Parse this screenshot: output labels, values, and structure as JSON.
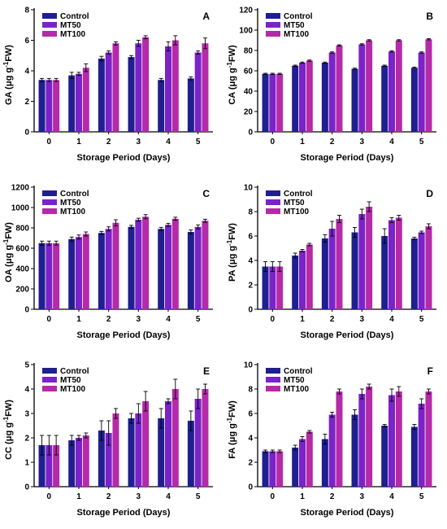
{
  "colors": {
    "Control": "#1f1f8f",
    "MT50": "#7b22c9",
    "MT100": "#b42aa8"
  },
  "chart_data": [
    {
      "type": "bar",
      "panel": "A",
      "ylabel_main": "GA",
      "ylabel_unit_pre": "(μg g",
      "ylabel_sup": "-1",
      "ylabel_unit_post": "FW)",
      "xlabel": "Storage Period (Days)",
      "categories": [
        "0",
        "1",
        "2",
        "3",
        "4",
        "5"
      ],
      "ylim": [
        0,
        8
      ],
      "yticks": [
        0,
        2,
        4,
        6,
        8
      ],
      "legend": "top-left",
      "series": [
        {
          "name": "Control",
          "values": [
            3.4,
            3.7,
            4.8,
            4.9,
            3.4,
            3.5
          ],
          "errors": [
            0.1,
            0.2,
            0.15,
            0.1,
            0.1,
            0.1
          ]
        },
        {
          "name": "MT50",
          "values": [
            3.4,
            3.8,
            5.2,
            5.8,
            5.6,
            5.2
          ],
          "errors": [
            0.1,
            0.1,
            0.1,
            0.2,
            0.3,
            0.1
          ]
        },
        {
          "name": "MT100",
          "values": [
            3.4,
            4.2,
            5.8,
            6.2,
            6.0,
            5.8
          ],
          "errors": [
            0.1,
            0.25,
            0.1,
            0.1,
            0.3,
            0.35
          ]
        }
      ]
    },
    {
      "type": "bar",
      "panel": "B",
      "ylabel_main": "CA",
      "ylabel_unit_pre": "(μg g",
      "ylabel_sup": "-1",
      "ylabel_unit_post": "FW)",
      "xlabel": "Storage Period (Days)",
      "categories": [
        "0",
        "1",
        "2",
        "3",
        "4",
        "5"
      ],
      "ylim": [
        0,
        120
      ],
      "yticks": [
        0,
        20,
        40,
        60,
        80,
        100,
        120
      ],
      "legend": "top-left",
      "series": [
        {
          "name": "Control",
          "values": [
            57,
            65,
            68,
            62,
            65,
            63
          ],
          "errors": [
            0.6,
            0.6,
            0.6,
            0.6,
            0.6,
            0.6
          ]
        },
        {
          "name": "MT50",
          "values": [
            57,
            68,
            78,
            86,
            79,
            78
          ],
          "errors": [
            0.6,
            0.6,
            0.6,
            0.6,
            0.6,
            0.6
          ]
        },
        {
          "name": "MT100",
          "values": [
            57,
            70,
            85,
            90,
            90,
            91
          ],
          "errors": [
            0.6,
            0.6,
            0.6,
            0.6,
            0.6,
            0.6
          ]
        }
      ]
    },
    {
      "type": "bar",
      "panel": "C",
      "ylabel_main": "OA",
      "ylabel_unit_pre": "(μg g",
      "ylabel_sup": "-1",
      "ylabel_unit_post": "FW)",
      "xlabel": "Storage Period (Days)",
      "categories": [
        "0",
        "1",
        "2",
        "3",
        "4",
        "5"
      ],
      "ylim": [
        0,
        1200
      ],
      "yticks": [
        0,
        200,
        400,
        600,
        800,
        1000,
        1200
      ],
      "legend": "top-left",
      "series": [
        {
          "name": "Control",
          "values": [
            650,
            690,
            750,
            810,
            790,
            760
          ],
          "errors": [
            20,
            20,
            15,
            15,
            15,
            20
          ]
        },
        {
          "name": "MT50",
          "values": [
            650,
            710,
            790,
            880,
            830,
            810
          ],
          "errors": [
            20,
            20,
            20,
            15,
            15,
            20
          ]
        },
        {
          "name": "MT100",
          "values": [
            650,
            740,
            850,
            910,
            890,
            870
          ],
          "errors": [
            20,
            20,
            30,
            20,
            15,
            15
          ]
        }
      ]
    },
    {
      "type": "bar",
      "panel": "D",
      "ylabel_main": "PA",
      "ylabel_unit_pre": "(μg g",
      "ylabel_sup": "-1",
      "ylabel_unit_post": "FW)",
      "xlabel": "Storage Period (Days)",
      "categories": [
        "0",
        "1",
        "2",
        "3",
        "4",
        "5"
      ],
      "ylim": [
        0,
        10
      ],
      "yticks": [
        0,
        2,
        4,
        6,
        8,
        10
      ],
      "legend": "top-left",
      "series": [
        {
          "name": "Control",
          "values": [
            3.5,
            4.4,
            5.8,
            6.3,
            6.0,
            5.8
          ],
          "errors": [
            0.4,
            0.2,
            0.3,
            0.4,
            0.6,
            0.1
          ]
        },
        {
          "name": "MT50",
          "values": [
            3.5,
            4.8,
            6.6,
            7.8,
            7.3,
            6.3
          ],
          "errors": [
            0.4,
            0.1,
            0.6,
            0.4,
            0.2,
            0.1
          ]
        },
        {
          "name": "MT100",
          "values": [
            3.5,
            5.3,
            7.4,
            8.4,
            7.5,
            6.8
          ],
          "errors": [
            0.4,
            0.1,
            0.3,
            0.4,
            0.2,
            0.2
          ]
        }
      ]
    },
    {
      "type": "bar",
      "panel": "E",
      "ylabel_main": "CC",
      "ylabel_unit_pre": "(μg g",
      "ylabel_sup": "-1",
      "ylabel_unit_post": "FW)",
      "xlabel": "Storage Period (Days)",
      "categories": [
        "0",
        "1",
        "2",
        "3",
        "4",
        "5"
      ],
      "ylim": [
        0,
        5
      ],
      "yticks": [
        0,
        1,
        2,
        3,
        4,
        5
      ],
      "legend": "top-left",
      "series": [
        {
          "name": "Control",
          "values": [
            1.7,
            1.9,
            2.3,
            2.8,
            2.8,
            2.7
          ],
          "errors": [
            0.4,
            0.2,
            0.4,
            0.2,
            0.4,
            0.4
          ]
        },
        {
          "name": "MT50",
          "values": [
            1.7,
            2.0,
            2.2,
            3.0,
            3.5,
            3.6
          ],
          "errors": [
            0.4,
            0.1,
            0.5,
            0.4,
            0.1,
            0.4
          ]
        },
        {
          "name": "MT100",
          "values": [
            1.7,
            2.1,
            3.0,
            3.5,
            4.0,
            4.0
          ],
          "errors": [
            0.4,
            0.1,
            0.2,
            0.4,
            0.4,
            0.2
          ]
        }
      ]
    },
    {
      "type": "bar",
      "panel": "F",
      "ylabel_main": "FA",
      "ylabel_unit_pre": "(μg g",
      "ylabel_sup": "-1",
      "ylabel_unit_post": "FW)",
      "xlabel": "Storage Period (Days)",
      "categories": [
        "0",
        "1",
        "2",
        "3",
        "4",
        "5"
      ],
      "ylim": [
        0,
        10
      ],
      "yticks": [
        0,
        2,
        4,
        6,
        8,
        10
      ],
      "legend": "top-left",
      "series": [
        {
          "name": "Control",
          "values": [
            2.9,
            3.2,
            3.9,
            5.9,
            5.0,
            4.9
          ],
          "errors": [
            0.1,
            0.2,
            0.4,
            0.4,
            0.1,
            0.2
          ]
        },
        {
          "name": "MT50",
          "values": [
            2.9,
            3.9,
            5.9,
            7.6,
            7.5,
            6.8
          ],
          "errors": [
            0.1,
            0.2,
            0.2,
            0.4,
            0.5,
            0.4
          ]
        },
        {
          "name": "MT100",
          "values": [
            2.9,
            4.5,
            7.8,
            8.2,
            7.8,
            7.8
          ],
          "errors": [
            0.1,
            0.1,
            0.2,
            0.2,
            0.4,
            0.2
          ]
        }
      ]
    }
  ]
}
